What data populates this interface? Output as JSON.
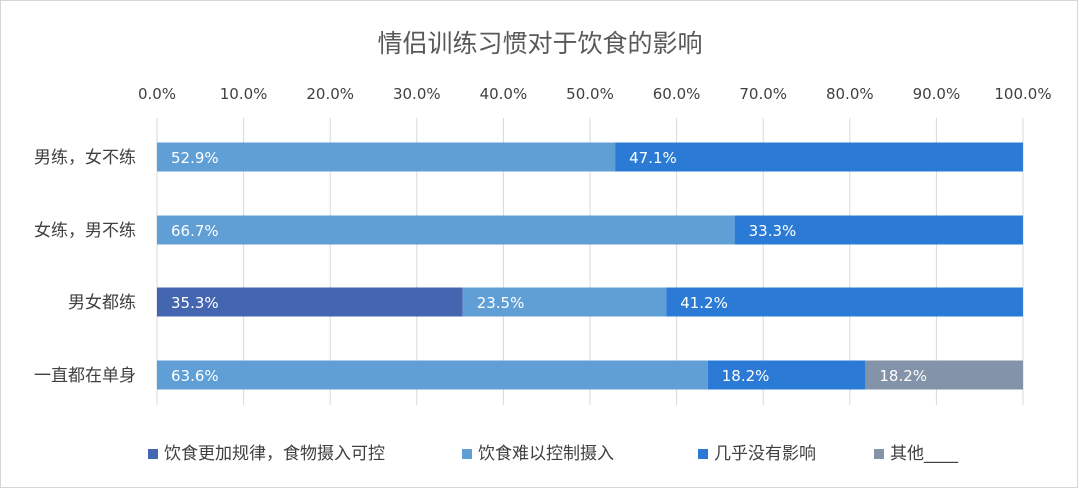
{
  "chart_data": {
    "type": "bar",
    "orientation": "horizontal",
    "stacked": true,
    "title": "情侣训练习惯对于饮食的影响",
    "categories": [
      "男练，女不练",
      "女练，男不练",
      "男女都练",
      "一直都在单身"
    ],
    "xlim": [
      0,
      100
    ],
    "x_ticks": [
      "0.0%",
      "10.0%",
      "20.0%",
      "30.0%",
      "40.0%",
      "50.0%",
      "60.0%",
      "70.0%",
      "80.0%",
      "90.0%",
      "100.0%"
    ],
    "grid": true,
    "legend_position": "bottom",
    "series": [
      {
        "name": "饮食更加规律，食物摄入可控",
        "color": "#4466b0",
        "values": [
          0,
          0,
          35.3,
          0
        ],
        "labels": [
          "",
          "",
          "35.3%",
          ""
        ]
      },
      {
        "name": "饮食难以控制摄入",
        "color": "#5f9fd6",
        "values": [
          52.9,
          66.7,
          23.5,
          63.6
        ],
        "labels": [
          "52.9%",
          "66.7%",
          "23.5%",
          "63.6%"
        ]
      },
      {
        "name": "几乎没有影响",
        "color": "#2b7bd6",
        "values": [
          47.1,
          33.3,
          41.2,
          18.2
        ],
        "labels": [
          "47.1%",
          "33.3%",
          "41.2%",
          "18.2%"
        ]
      },
      {
        "name": "其他____",
        "color": "#8393a9",
        "values": [
          0,
          0,
          0,
          18.2
        ],
        "labels": [
          "",
          "",
          "",
          "18.2%"
        ]
      }
    ]
  }
}
